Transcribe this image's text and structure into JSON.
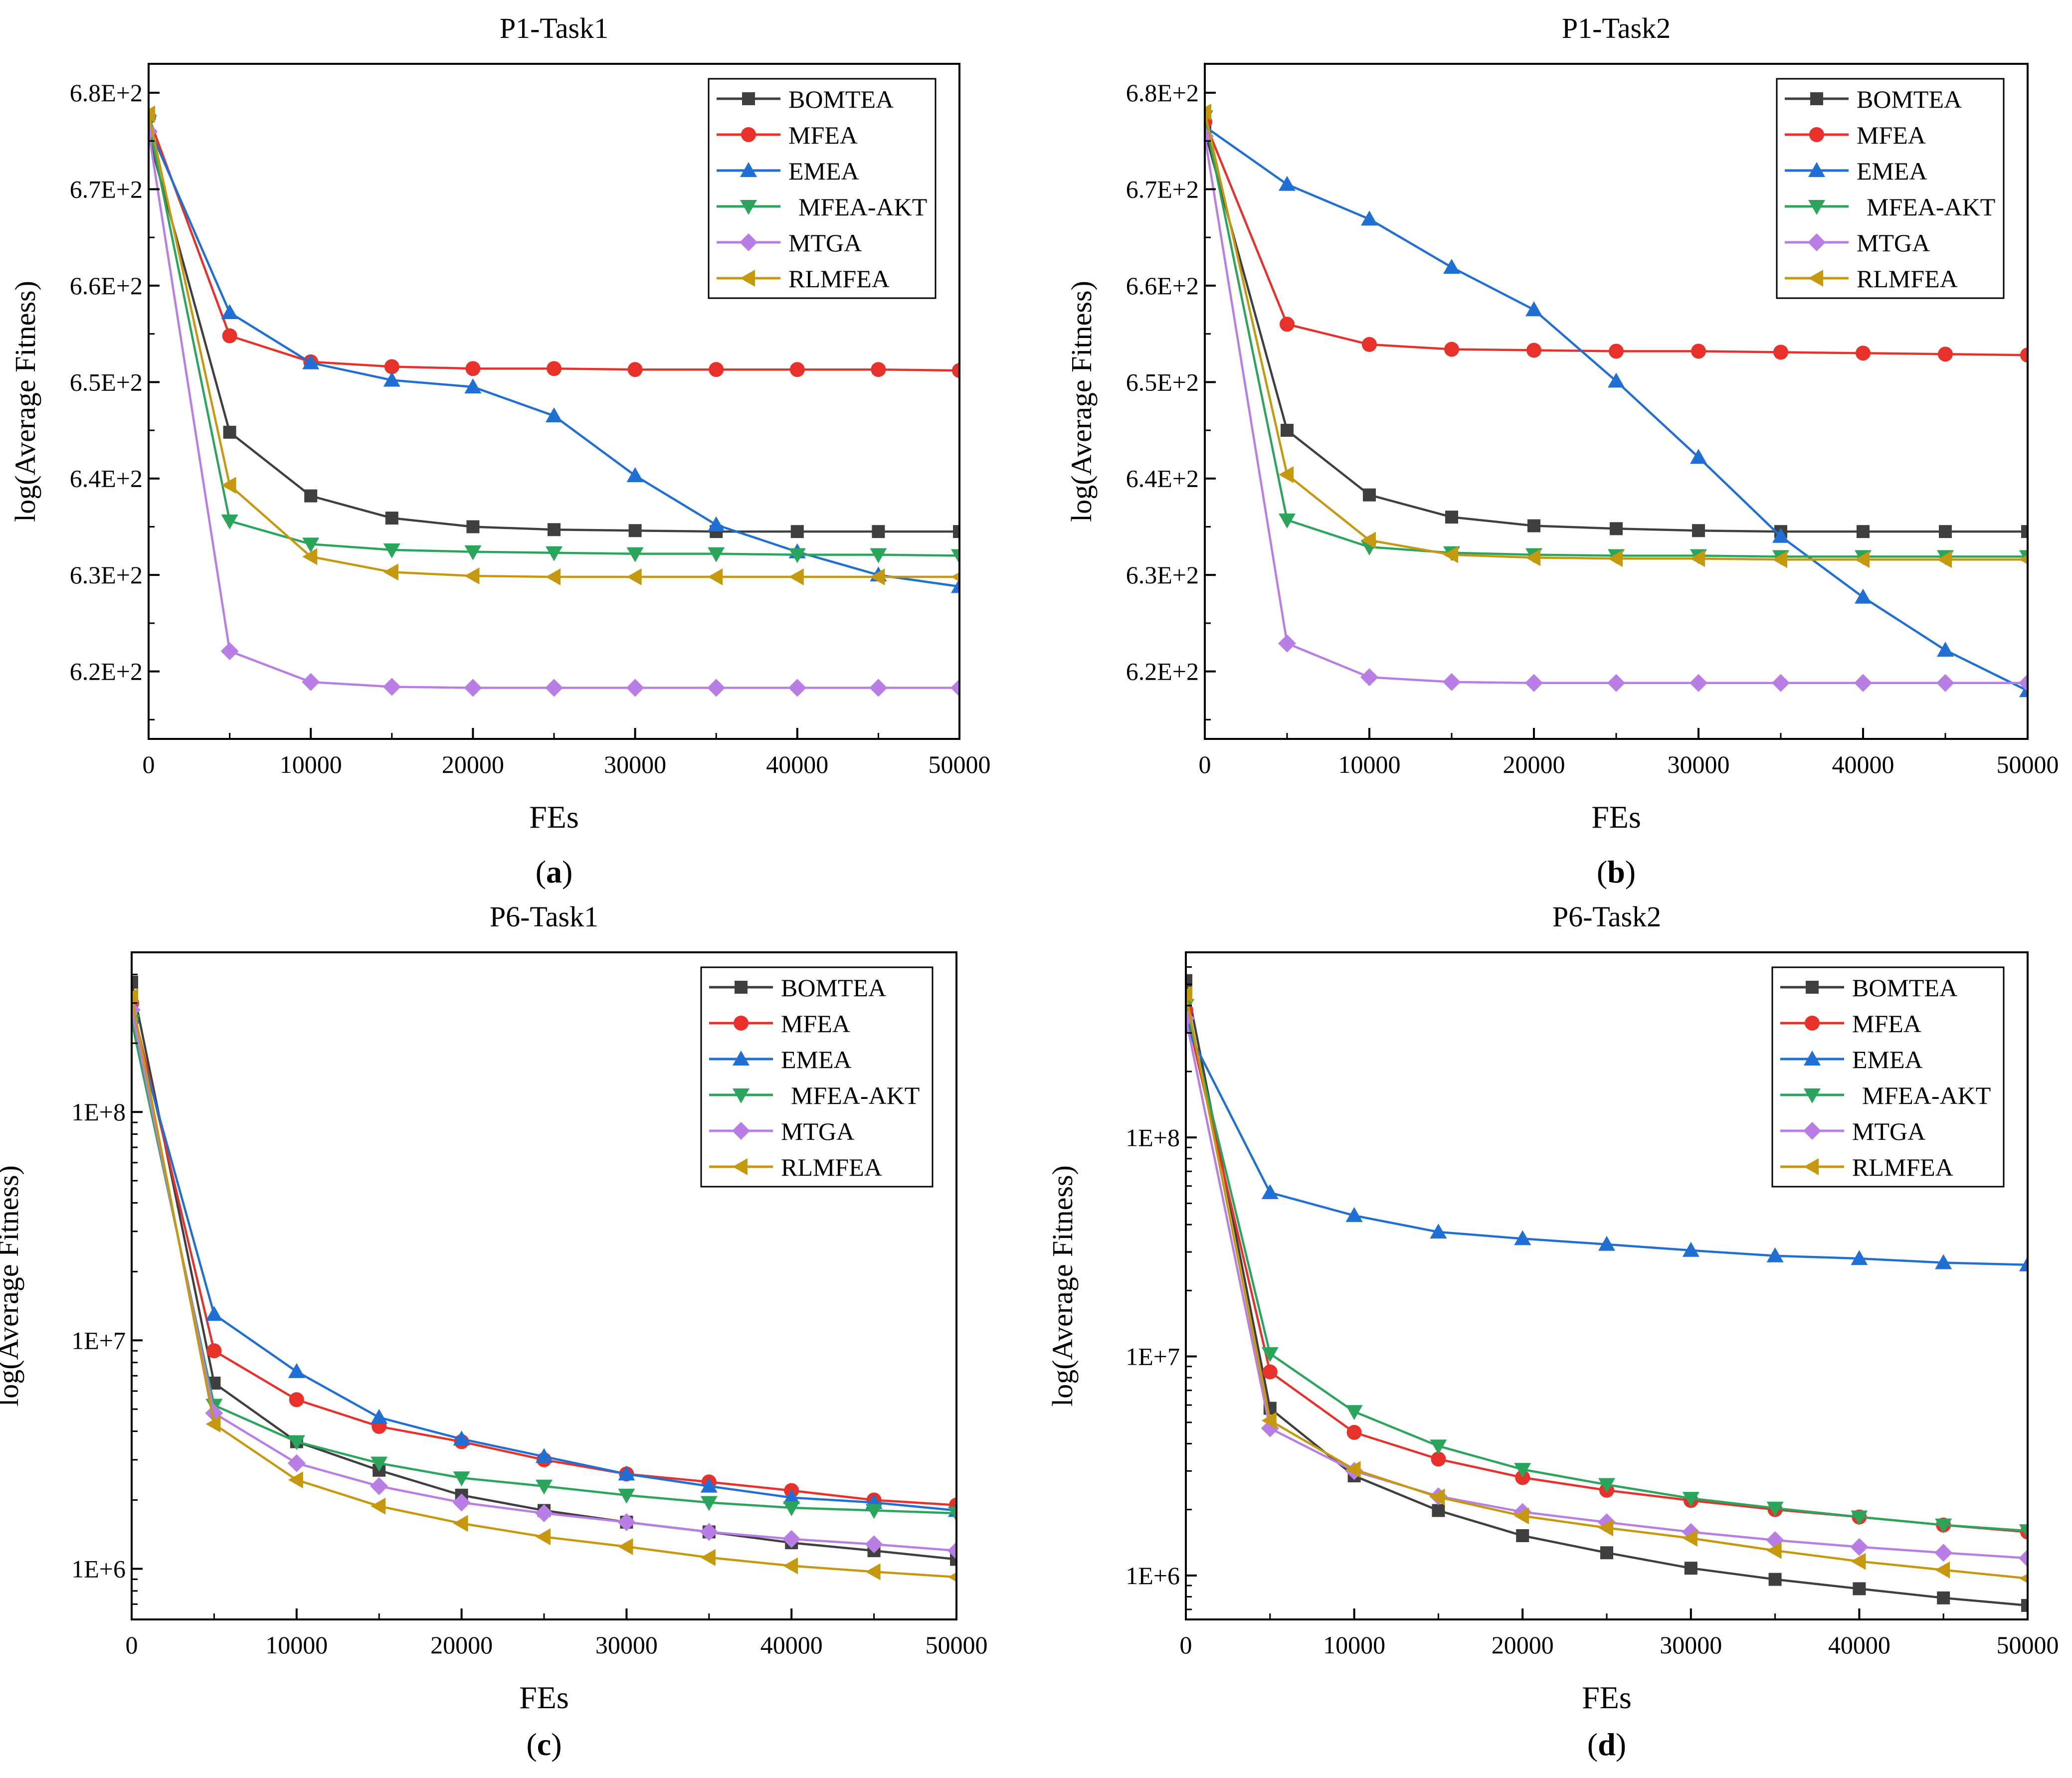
{
  "colors": {
    "BOMTEA": "#3f3f3f",
    "MFEA": "#e8312a",
    "EMEA": "#1f6fd4",
    "MFEA-AKT": "#2aa55c",
    "MTGA": "#b97ee6",
    "RLMFEA": "#c6980e"
  },
  "chart_data": [
    {
      "type": "line",
      "title": "P1-Task1",
      "caption": "(a)",
      "caption_letter": "a",
      "xlabel": "FEs",
      "ylabel": "log(Average Fitness)",
      "xlim": [
        0,
        50000
      ],
      "ylim": [
        613,
        683
      ],
      "yscale": "linear",
      "xticks": [
        0,
        10000,
        20000,
        30000,
        40000,
        50000
      ],
      "xtick_labels": [
        "0",
        "10000",
        "20000",
        "30000",
        "40000",
        "50000"
      ],
      "yticks": [
        620,
        630,
        640,
        650,
        660,
        670,
        680
      ],
      "ytick_labels": [
        "6.2E+2",
        "6.3E+2",
        "6.4E+2",
        "6.5E+2",
        "6.6E+2",
        "6.7E+2",
        "6.8E+2"
      ],
      "legend_position": "top-right",
      "x": [
        0,
        5000,
        10000,
        15000,
        20000,
        25000,
        30000,
        35000,
        40000,
        45000,
        50000
      ],
      "series": [
        {
          "name": "BOMTEA",
          "marker": "square",
          "values": [
            675.5,
            644.8,
            638.2,
            635.9,
            635.0,
            634.7,
            634.6,
            634.5,
            634.5,
            634.5,
            634.5
          ]
        },
        {
          "name": "MFEA",
          "marker": "circle",
          "values": [
            677.5,
            654.8,
            652.1,
            651.6,
            651.4,
            651.4,
            651.3,
            651.3,
            651.3,
            651.3,
            651.2
          ]
        },
        {
          "name": "EMEA",
          "marker": "triangle-up",
          "values": [
            676.5,
            657.2,
            652.0,
            650.2,
            649.5,
            646.5,
            640.3,
            635.2,
            632.4,
            630.0,
            628.8
          ]
        },
        {
          "name": "MFEA-AKT",
          "marker": "triangle-down",
          "values": [
            677.0,
            635.6,
            633.2,
            632.6,
            632.4,
            632.3,
            632.2,
            632.2,
            632.1,
            632.1,
            632.0
          ]
        },
        {
          "name": "MTGA",
          "marker": "diamond",
          "values": [
            676.0,
            622.1,
            618.9,
            618.4,
            618.3,
            618.3,
            618.3,
            618.3,
            618.3,
            618.3,
            618.3
          ]
        },
        {
          "name": "RLMFEA",
          "marker": "triangle-left",
          "values": [
            677.8,
            639.3,
            631.9,
            630.3,
            629.9,
            629.8,
            629.8,
            629.8,
            629.8,
            629.8,
            629.8
          ]
        }
      ]
    },
    {
      "type": "line",
      "title": "P1-Task2",
      "caption": "(b)",
      "caption_letter": "b",
      "xlabel": "FEs",
      "ylabel": "log(Average Fitness)",
      "xlim": [
        0,
        50000
      ],
      "ylim": [
        613,
        683
      ],
      "yscale": "linear",
      "xticks": [
        0,
        10000,
        20000,
        30000,
        40000,
        50000
      ],
      "xtick_labels": [
        "0",
        "10000",
        "20000",
        "30000",
        "40000",
        "50000"
      ],
      "yticks": [
        620,
        630,
        640,
        650,
        660,
        670,
        680
      ],
      "ytick_labels": [
        "6.2E+2",
        "6.3E+2",
        "6.4E+2",
        "6.5E+2",
        "6.6E+2",
        "6.7E+2",
        "6.8E+2"
      ],
      "legend_position": "top-right",
      "x": [
        0,
        5000,
        10000,
        15000,
        20000,
        25000,
        30000,
        35000,
        40000,
        45000,
        50000
      ],
      "series": [
        {
          "name": "BOMTEA",
          "marker": "square",
          "values": [
            676.0,
            645.0,
            638.3,
            636.0,
            635.1,
            634.8,
            634.6,
            634.5,
            634.5,
            634.5,
            634.5
          ]
        },
        {
          "name": "MFEA",
          "marker": "circle",
          "values": [
            677.0,
            656.0,
            653.9,
            653.4,
            653.3,
            653.2,
            653.2,
            653.1,
            653.0,
            652.9,
            652.8
          ]
        },
        {
          "name": "EMEA",
          "marker": "triangle-up",
          "values": [
            676.5,
            670.5,
            666.9,
            661.9,
            657.5,
            650.1,
            642.2,
            634.0,
            627.7,
            622.2,
            618.0
          ]
        },
        {
          "name": "MFEA-AKT",
          "marker": "triangle-down",
          "values": [
            677.5,
            635.7,
            632.9,
            632.3,
            632.1,
            632.0,
            632.0,
            631.9,
            631.9,
            631.9,
            631.9
          ]
        },
        {
          "name": "MTGA",
          "marker": "diamond",
          "values": [
            675.5,
            622.9,
            619.4,
            618.9,
            618.8,
            618.8,
            618.8,
            618.8,
            618.8,
            618.8,
            618.8
          ]
        },
        {
          "name": "RLMFEA",
          "marker": "triangle-left",
          "values": [
            678.0,
            640.4,
            633.6,
            632.1,
            631.8,
            631.7,
            631.7,
            631.6,
            631.6,
            631.6,
            631.6
          ]
        }
      ]
    },
    {
      "type": "line",
      "title": "P6-Task1",
      "caption": "(c)",
      "caption_letter": "c",
      "xlabel": "FEs",
      "ylabel": "log(Average Fitness)",
      "xlim": [
        0,
        50000
      ],
      "ylim": [
        600000,
        500000000
      ],
      "yscale": "log",
      "xticks": [
        0,
        10000,
        20000,
        30000,
        40000,
        50000
      ],
      "xtick_labels": [
        "0",
        "10000",
        "20000",
        "30000",
        "40000",
        "50000"
      ],
      "yticks": [
        1000000,
        10000000,
        100000000
      ],
      "ytick_labels": [
        "1E+6",
        "1E+7",
        "1E+8"
      ],
      "legend_position": "top-right",
      "x": [
        0,
        5000,
        10000,
        15000,
        20000,
        25000,
        30000,
        35000,
        40000,
        45000,
        50000
      ],
      "series": [
        {
          "name": "BOMTEA",
          "marker": "square",
          "values": [
            370000000,
            6500000,
            3600000,
            2700000,
            2100000,
            1800000,
            1600000,
            1450000,
            1300000,
            1200000,
            1100000
          ]
        },
        {
          "name": "MFEA",
          "marker": "circle",
          "values": [
            300000000,
            9000000,
            5500000,
            4200000,
            3600000,
            3000000,
            2600000,
            2400000,
            2200000,
            2000000,
            1900000
          ]
        },
        {
          "name": "EMEA",
          "marker": "triangle-up",
          "values": [
            260000000,
            13000000,
            7300000,
            4600000,
            3700000,
            3100000,
            2600000,
            2300000,
            2050000,
            1950000,
            1800000
          ]
        },
        {
          "name": "MFEA-AKT",
          "marker": "triangle-down",
          "values": [
            250000000,
            5200000,
            3600000,
            2900000,
            2500000,
            2300000,
            2100000,
            1950000,
            1850000,
            1800000,
            1750000
          ]
        },
        {
          "name": "MTGA",
          "marker": "diamond",
          "values": [
            280000000,
            4800000,
            2900000,
            2300000,
            1950000,
            1750000,
            1600000,
            1450000,
            1350000,
            1280000,
            1200000
          ]
        },
        {
          "name": "RLMFEA",
          "marker": "triangle-left",
          "values": [
            320000000,
            4300000,
            2450000,
            1880000,
            1580000,
            1380000,
            1250000,
            1120000,
            1030000,
            970000,
            920000
          ]
        }
      ]
    },
    {
      "type": "line",
      "title": "P6-Task2",
      "caption": "(d)",
      "caption_letter": "d",
      "xlabel": "FEs",
      "ylabel": "log(Average Fitness)",
      "xlim": [
        0,
        50000
      ],
      "ylim": [
        630000,
        700000000
      ],
      "yscale": "log",
      "xticks": [
        0,
        10000,
        20000,
        30000,
        40000,
        50000
      ],
      "xtick_labels": [
        "0",
        "10000",
        "20000",
        "30000",
        "40000",
        "50000"
      ],
      "yticks": [
        1000000,
        10000000,
        100000000
      ],
      "ytick_labels": [
        "1E+6",
        "1E+7",
        "1E+8"
      ],
      "legend_position": "top-right",
      "x": [
        0,
        5000,
        10000,
        15000,
        20000,
        25000,
        30000,
        35000,
        40000,
        45000,
        50000
      ],
      "series": [
        {
          "name": "BOMTEA",
          "marker": "square",
          "values": [
            520000000,
            5800000,
            2850000,
            1980000,
            1520000,
            1270000,
            1080000,
            960000,
            870000,
            790000,
            730000
          ]
        },
        {
          "name": "MFEA",
          "marker": "circle",
          "values": [
            380000000,
            8500000,
            4500000,
            3400000,
            2800000,
            2450000,
            2200000,
            2000000,
            1850000,
            1700000,
            1580000
          ]
        },
        {
          "name": "EMEA",
          "marker": "triangle-up",
          "values": [
            320000000,
            56000000,
            44000000,
            37000000,
            34500000,
            32500000,
            30500000,
            28800000,
            28000000,
            26800000,
            26200000
          ]
        },
        {
          "name": "MFEA-AKT",
          "marker": "triangle-down",
          "values": [
            400000000,
            10300000,
            5600000,
            3900000,
            3050000,
            2600000,
            2250000,
            2030000,
            1850000,
            1700000,
            1600000
          ]
        },
        {
          "name": "MTGA",
          "marker": "diamond",
          "values": [
            350000000,
            4700000,
            3000000,
            2300000,
            1950000,
            1750000,
            1580000,
            1450000,
            1350000,
            1270000,
            1200000
          ]
        },
        {
          "name": "RLMFEA",
          "marker": "triangle-left",
          "values": [
            450000000,
            5100000,
            3050000,
            2280000,
            1870000,
            1650000,
            1480000,
            1300000,
            1160000,
            1060000,
            970000
          ]
        }
      ]
    }
  ]
}
